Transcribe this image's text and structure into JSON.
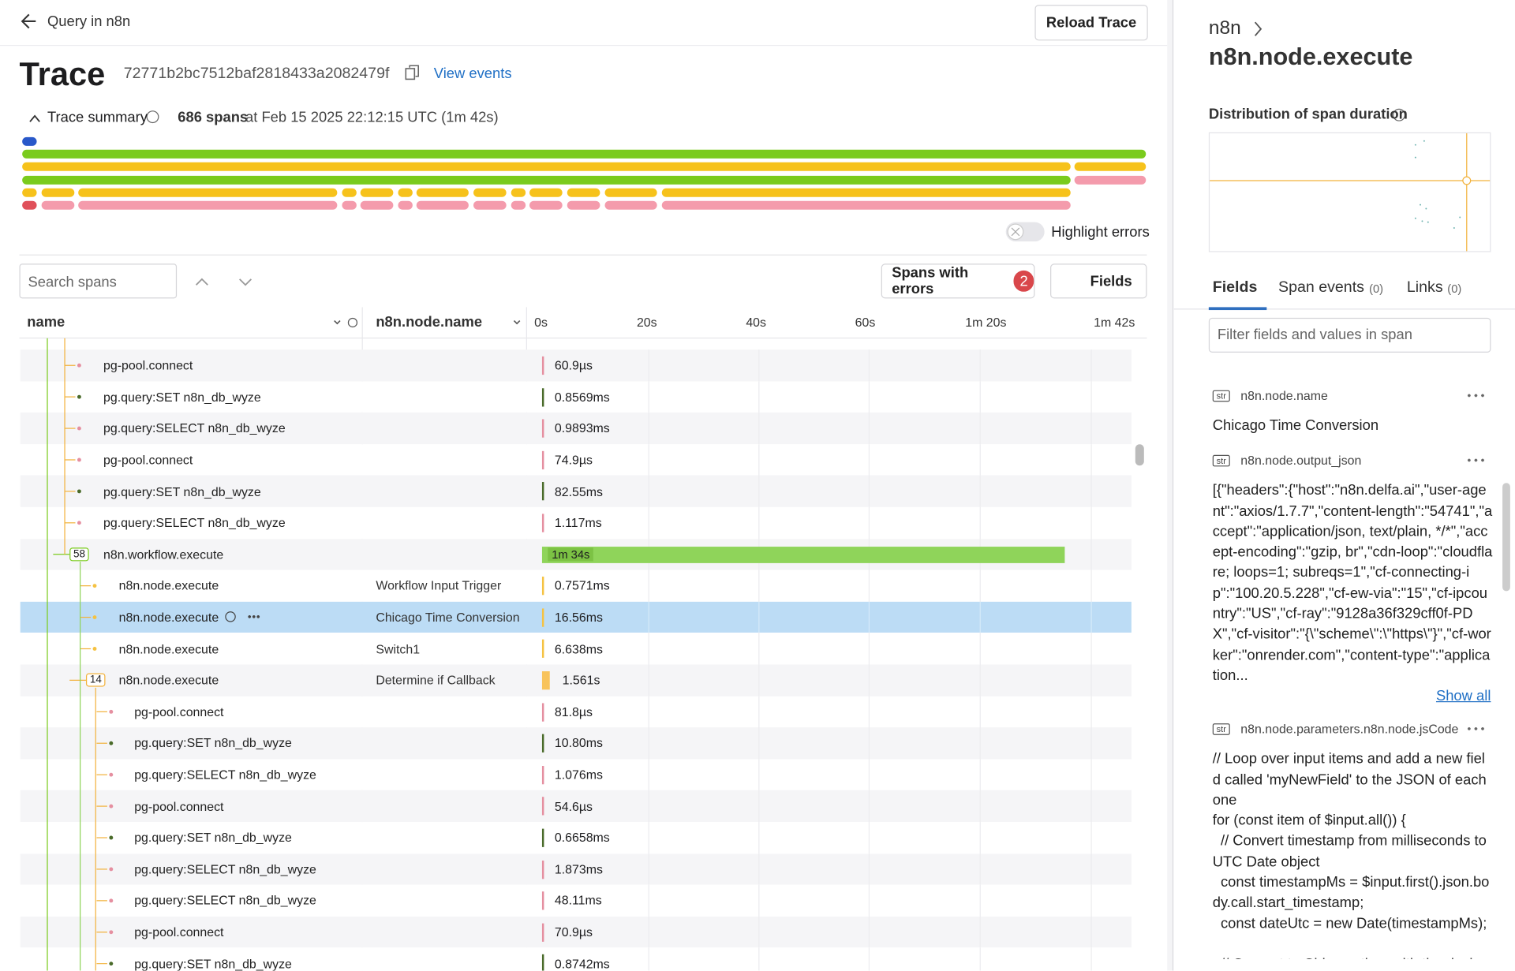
{
  "header": {
    "back": "Query in n8n",
    "reload": "Reload Trace"
  },
  "trace": {
    "title": "Trace",
    "id": "72771b2bc7512baf2818433a2082479f",
    "view_events": "View events"
  },
  "summary": {
    "label": "Trace summary",
    "spans": "686 spans",
    "when": "at Feb 15 2025 22:12:15 UTC (1m 42s)",
    "highlight": "Highlight errors"
  },
  "toolbar": {
    "search": "Search spans",
    "errors": "Spans with errors",
    "error_count": "2",
    "fields": "Fields"
  },
  "columns": {
    "name": "name",
    "node": "n8n.node.name",
    "ticks": [
      "0s",
      "20s",
      "40s",
      "60s",
      "1m 20s",
      "1m 42s"
    ]
  },
  "rows": [
    {
      "name": "pg-pool.connect",
      "duration": "60.9µs"
    },
    {
      "name": "pg.query:SET n8n_db_wyze",
      "duration": "0.8569ms"
    },
    {
      "name": "pg.query:SELECT n8n_db_wyze",
      "duration": "0.9893ms"
    },
    {
      "name": "pg-pool.connect",
      "duration": "74.9µs"
    },
    {
      "name": "pg.query:SET n8n_db_wyze",
      "duration": "82.55ms"
    },
    {
      "name": "pg.query:SELECT n8n_db_wyze",
      "duration": "1.117ms"
    },
    {
      "badge": "58",
      "name": "n8n.workflow.execute",
      "duration": "1m 34s"
    },
    {
      "name": "n8n.node.execute",
      "node": "Workflow Input Trigger",
      "duration": "0.7571ms"
    },
    {
      "name": "n8n.node.execute",
      "node": "Chicago Time Conversion",
      "duration": "16.56ms"
    },
    {
      "name": "n8n.node.execute",
      "node": "Switch1",
      "duration": "6.638ms"
    },
    {
      "badge": "14",
      "name": "n8n.node.execute",
      "node": "Determine if Callback",
      "duration": "1.561s"
    },
    {
      "name": "pg-pool.connect",
      "duration": "81.8µs"
    },
    {
      "name": "pg.query:SET n8n_db_wyze",
      "duration": "10.80ms"
    },
    {
      "name": "pg.query:SELECT n8n_db_wyze",
      "duration": "1.076ms"
    },
    {
      "name": "pg-pool.connect",
      "duration": "54.6µs"
    },
    {
      "name": "pg.query:SET n8n_db_wyze",
      "duration": "0.6658ms"
    },
    {
      "name": "pg.query:SELECT n8n_db_wyze",
      "duration": "1.873ms"
    },
    {
      "name": "pg.query:SELECT n8n_db_wyze",
      "duration": "48.11ms"
    },
    {
      "name": "pg-pool.connect",
      "duration": "70.9µs"
    },
    {
      "name": "pg.query:SET n8n_db_wyze",
      "duration": "0.8742ms"
    }
  ],
  "panel": {
    "crumb": "n8n",
    "title": "n8n.node.execute",
    "distribution": "Distribution of span duration",
    "tabs": [
      {
        "label": "Fields"
      },
      {
        "label": "Span events",
        "count": "(0)"
      },
      {
        "label": "Links",
        "count": "(0)"
      }
    ],
    "filter": "Filter fields and values in span",
    "fields": [
      {
        "type": "str",
        "key": "n8n.node.name",
        "value": "Chicago Time Conversion"
      },
      {
        "type": "str",
        "key": "n8n.node.output_json",
        "value": "[{\"headers\":{\"host\":\"n8n.delfa.ai\",\"user-agent\":\"axios/1.7.7\",\"content-length\":\"54741\",\"accept\":\"application/json, text/plain, */*\",\"accept-encoding\":\"gzip, br\",\"cdn-loop\":\"cloudflare; loops=1; subreqs=1\",\"cf-connecting-ip\":\"100.20.5.228\",\"cf-ew-via\":\"15\",\"cf-ipcountry\":\"US\",\"cf-ray\":\"9128a36f329cff0f-PDX\",\"cf-visitor\":\"{\\\"scheme\\\":\\\"https\\\"}\",\"cf-worker\":\"onrender.com\",\"content-type\":\"application...",
        "more": "Show all"
      },
      {
        "type": "str",
        "key": "n8n.node.parameters.n8n.node.jsCode",
        "value": "// Loop over input items and add a new field called 'myNewField' to the JSON of each one\nfor (const item of $input.all()) {\n  // Convert timestamp from milliseconds to UTC Date object\n  const timestampMs = $input.first().json.body.call.start_timestamp;\n  const dateUtc = new Date(timestampMs);\n\n  // Convert to Chicago time with the desired"
      }
    ]
  }
}
